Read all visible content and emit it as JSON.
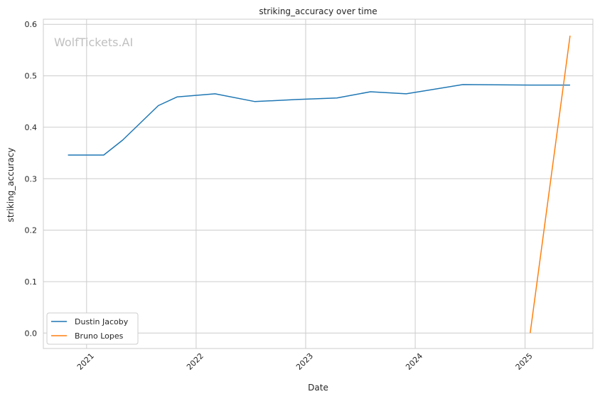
{
  "watermark": "WolfTickets.AI",
  "chart_data": {
    "type": "line",
    "title": "striking_accuracy over time",
    "xlabel": "Date",
    "ylabel": "striking_accuracy",
    "x_ticks": [
      "2021",
      "2022",
      "2023",
      "2024",
      "2025"
    ],
    "y_ticks": [
      "0.0",
      "0.1",
      "0.2",
      "0.3",
      "0.4",
      "0.5",
      "0.6"
    ],
    "xlim": [
      "2020-08-10",
      "2025-08-15"
    ],
    "ylim": [
      -0.03,
      0.61
    ],
    "grid": true,
    "legend_position": "lower-left",
    "series": [
      {
        "name": "Dustin Jacoby",
        "color": "#1f77b4",
        "x": [
          "2020-10-31",
          "2021-02-27",
          "2021-05-01",
          "2021-08-28",
          "2021-10-30",
          "2022-03-05",
          "2022-07-16",
          "2022-12-03",
          "2023-04-15",
          "2023-08-05",
          "2023-12-02",
          "2024-06-08",
          "2025-01-18",
          "2025-05-31"
        ],
        "y": [
          0.346,
          0.346,
          0.375,
          0.442,
          0.459,
          0.465,
          0.45,
          0.454,
          0.457,
          0.469,
          0.465,
          0.483,
          0.482,
          0.482
        ]
      },
      {
        "name": "Bruno Lopes",
        "color": "#ff7f0e",
        "x": [
          "2025-01-18",
          "2025-05-31"
        ],
        "y": [
          0.0,
          0.578
        ]
      }
    ]
  }
}
